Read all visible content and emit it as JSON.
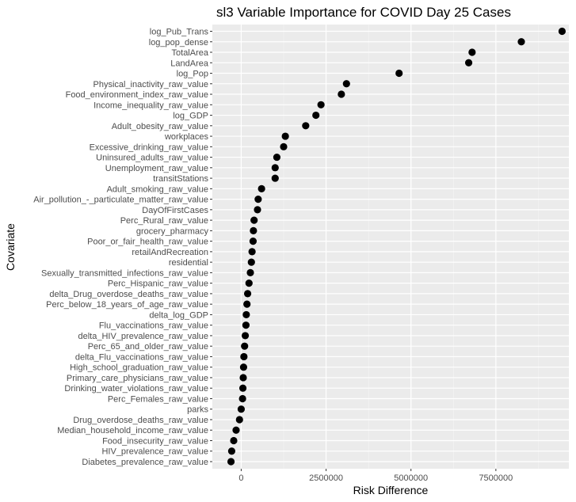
{
  "chart_data": {
    "type": "scatter",
    "title": "sl3 Variable Importance for COVID Day 25 Cases",
    "xlabel": "Risk Difference",
    "ylabel": "Covariate",
    "xlim": [
      -850000,
      9650000
    ],
    "xticks": [
      0,
      2500000,
      5000000,
      7500000
    ],
    "xtick_labels": [
      "0",
      "2500000",
      "5000000",
      "7500000"
    ],
    "grid": true,
    "colors": {
      "panel": "#ebebeb",
      "grid_major": "#ffffff",
      "grid_minor": "#f5f5f5",
      "point": "#000000",
      "tick_text": "#4d4d4d"
    },
    "points": [
      {
        "covariate": "log_Pub_Trans",
        "value": 9450000
      },
      {
        "covariate": "log_pop_dense",
        "value": 8250000
      },
      {
        "covariate": "TotalArea",
        "value": 6800000
      },
      {
        "covariate": "LandArea",
        "value": 6700000
      },
      {
        "covariate": "log_Pop",
        "value": 4650000
      },
      {
        "covariate": "Physical_inactivity_raw_value",
        "value": 3100000
      },
      {
        "covariate": "Food_environment_index_raw_value",
        "value": 2950000
      },
      {
        "covariate": "Income_inequality_raw_value",
        "value": 2350000
      },
      {
        "covariate": "log_GDP",
        "value": 2200000
      },
      {
        "covariate": "Adult_obesity_raw_value",
        "value": 1900000
      },
      {
        "covariate": "workplaces",
        "value": 1300000
      },
      {
        "covariate": "Excessive_drinking_raw_value",
        "value": 1250000
      },
      {
        "covariate": "Uninsured_adults_raw_value",
        "value": 1050000
      },
      {
        "covariate": "Unemployment_raw_value",
        "value": 1000000
      },
      {
        "covariate": "transitStations",
        "value": 1000000
      },
      {
        "covariate": "Adult_smoking_raw_value",
        "value": 600000
      },
      {
        "covariate": "Air_pollution_-_particulate_matter_raw_value",
        "value": 500000
      },
      {
        "covariate": "DayOfFirstCases",
        "value": 480000
      },
      {
        "covariate": "Perc_Rural_raw_value",
        "value": 380000
      },
      {
        "covariate": "grocery_pharmacy",
        "value": 360000
      },
      {
        "covariate": "Poor_or_fair_health_raw_value",
        "value": 350000
      },
      {
        "covariate": "retailAndRecreation",
        "value": 320000
      },
      {
        "covariate": "residential",
        "value": 300000
      },
      {
        "covariate": "Sexually_transmitted_infections_raw_value",
        "value": 270000
      },
      {
        "covariate": "Perc_Hispanic_raw_value",
        "value": 230000
      },
      {
        "covariate": "delta_Drug_overdose_deaths_raw_value",
        "value": 190000
      },
      {
        "covariate": "Perc_below_18_years_of_age_raw_value",
        "value": 170000
      },
      {
        "covariate": "delta_log_GDP",
        "value": 150000
      },
      {
        "covariate": "Flu_vaccinations_raw_value",
        "value": 140000
      },
      {
        "covariate": "delta_HIV_prevalence_raw_value",
        "value": 120000
      },
      {
        "covariate": "Perc_65_and_older_raw_value",
        "value": 100000
      },
      {
        "covariate": "delta_Flu_vaccinations_raw_value",
        "value": 80000
      },
      {
        "covariate": "High_school_graduation_raw_value",
        "value": 70000
      },
      {
        "covariate": "Primary_care_physicians_raw_value",
        "value": 60000
      },
      {
        "covariate": "Drinking_water_violations_raw_value",
        "value": 50000
      },
      {
        "covariate": "Perc_Females_raw_value",
        "value": 40000
      },
      {
        "covariate": "parks",
        "value": 0
      },
      {
        "covariate": "Drug_overdose_deaths_raw_value",
        "value": -50000
      },
      {
        "covariate": "Median_household_income_raw_value",
        "value": -150000
      },
      {
        "covariate": "Food_insecurity_raw_value",
        "value": -220000
      },
      {
        "covariate": "HIV_prevalence_raw_value",
        "value": -280000
      },
      {
        "covariate": "Diabetes_prevalence_raw_value",
        "value": -300000
      }
    ]
  }
}
